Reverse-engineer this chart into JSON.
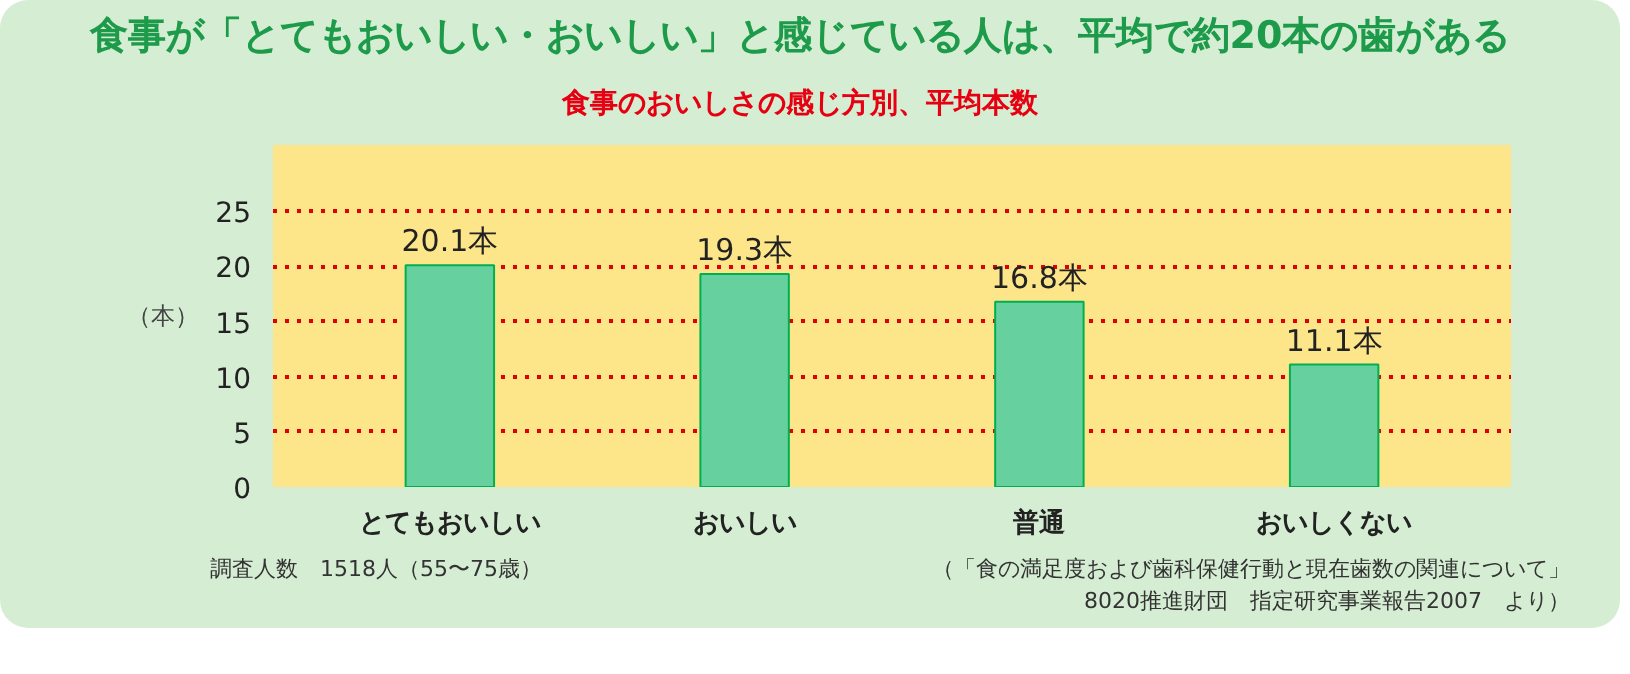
{
  "chart_data": {
    "type": "bar",
    "title": "食事が「とてもおいしい・おいしい」と感じている人は、平均で約20本の歯がある",
    "subtitle": "食事のおいしさの感じ方別、平均本数",
    "ylabel": "（本）",
    "categories": [
      "とてもおいしい",
      "おいしい",
      "普通",
      "おいしくない"
    ],
    "values": [
      20.1,
      19.3,
      16.8,
      11.1
    ],
    "value_labels": [
      "20.1本",
      "19.3本",
      "16.8本",
      "11.1本"
    ],
    "color": "#66d19e",
    "ylim": [
      0,
      31
    ],
    "yticks": [
      0,
      5,
      10,
      15,
      20,
      25
    ],
    "grid": "y",
    "annotations": [
      "調査人数　1518人（55〜75歳）",
      "（「食の満足度および歯科保健行動と現在歯数の関連について」\n8020推進財団　指定研究事業報告2007　より）"
    ]
  }
}
